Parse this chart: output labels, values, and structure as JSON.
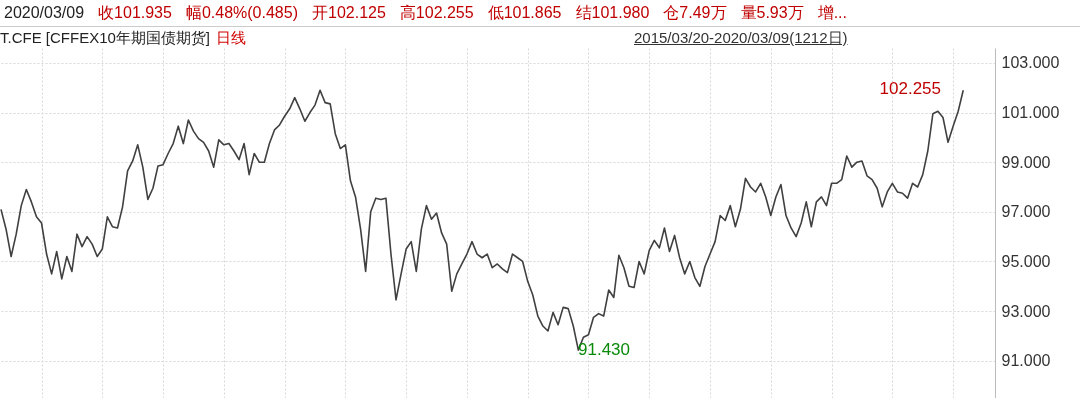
{
  "chart_data": {
    "type": "line",
    "title": "T.CFE [CFFEX10年期国债期货]",
    "subtitle": "日线",
    "annotations": [
      "2020/03/09",
      "收101.935",
      "幅0.48%(0.485)",
      "开102.125",
      "高102.255",
      "低101.865",
      "结101.980",
      "仓7.49万",
      "量5.93万",
      "增...",
      "2015/03/20-2020/03/09(1212日)",
      "102.255",
      "91.430"
    ],
    "categories": [
      null,
      null,
      null,
      null,
      null,
      null,
      null,
      null,
      null,
      null,
      null,
      null,
      null,
      null,
      null,
      null,
      null,
      null,
      null,
      null,
      null,
      null,
      null,
      null,
      null,
      null,
      null,
      null,
      null,
      null,
      null,
      null,
      null,
      null,
      null,
      null,
      null,
      null,
      null,
      null,
      null,
      null,
      null,
      null,
      null,
      null,
      null,
      null,
      null,
      null,
      null,
      null,
      null,
      null,
      null,
      null,
      null,
      null,
      null,
      null,
      null,
      null,
      null,
      null,
      null,
      null,
      null,
      null,
      null,
      null,
      null,
      null,
      null,
      null,
      null,
      null,
      null,
      null,
      null,
      null,
      null,
      null,
      null,
      null,
      null,
      null,
      null,
      null,
      null,
      null,
      null,
      null,
      null,
      null,
      null,
      null,
      null,
      null,
      null,
      null,
      null,
      null,
      null,
      null,
      null,
      null,
      null,
      null,
      null,
      null,
      null,
      null,
      null,
      null,
      null,
      null,
      null,
      null,
      null,
      null,
      null,
      null,
      null,
      null,
      null,
      null,
      null,
      null,
      null,
      null,
      null,
      null,
      null,
      null,
      null,
      null,
      null,
      null,
      null,
      null,
      null,
      null,
      null,
      null,
      null,
      null,
      null,
      null,
      null,
      null,
      null,
      null,
      null,
      null,
      null,
      null,
      null,
      null,
      null,
      null,
      null,
      null,
      null,
      null,
      null,
      null,
      null,
      null,
      null,
      null,
      null,
      null,
      null,
      null,
      null,
      null,
      null,
      null,
      null,
      null,
      null,
      null,
      null,
      null,
      null,
      null,
      null,
      null,
      null,
      null,
      null
    ],
    "series": [
      {
        "color": "#404040",
        "values": [
          97.1,
          96.3,
          95.2,
          96.1,
          97.25,
          97.9,
          97.4,
          96.8,
          96.55,
          95.3,
          94.5,
          95.4,
          94.3,
          95.2,
          94.6,
          96.1,
          95.6,
          96.0,
          95.7,
          95.2,
          95.5,
          96.8,
          96.4,
          96.35,
          97.2,
          98.65,
          99.05,
          99.7,
          98.8,
          97.5,
          97.95,
          98.85,
          98.9,
          99.35,
          99.75,
          100.45,
          99.75,
          100.7,
          100.25,
          99.95,
          99.8,
          99.45,
          98.8,
          99.9,
          99.7,
          99.75,
          99.45,
          99.1,
          99.75,
          98.5,
          99.35,
          99.0,
          99.0,
          99.75,
          100.3,
          100.5,
          100.85,
          101.15,
          101.6,
          101.15,
          100.65,
          101.0,
          101.3,
          101.9,
          101.4,
          101.35,
          100.15,
          99.55,
          99.7,
          98.25,
          97.6,
          96.3,
          94.6,
          97.0,
          97.55,
          97.5,
          97.55,
          95.3,
          93.45,
          94.5,
          95.5,
          95.8,
          94.6,
          96.3,
          97.25,
          96.7,
          96.95,
          96.15,
          95.7,
          93.8,
          94.5,
          94.9,
          95.3,
          95.8,
          95.3,
          95.15,
          95.3,
          94.75,
          94.9,
          94.7,
          94.55,
          95.3,
          95.15,
          95.0,
          94.2,
          93.65,
          92.8,
          92.4,
          92.2,
          92.95,
          92.45,
          93.15,
          93.1,
          92.4,
          91.43,
          91.95,
          92.05,
          92.75,
          92.9,
          92.8,
          93.85,
          93.55,
          95.25,
          94.75,
          94.0,
          93.95,
          95.0,
          94.5,
          95.45,
          95.85,
          95.55,
          96.35,
          95.4,
          96.05,
          95.15,
          94.5,
          95.0,
          94.35,
          94.0,
          94.8,
          95.3,
          95.8,
          96.85,
          96.65,
          97.25,
          96.4,
          97.1,
          98.35,
          98.0,
          97.8,
          98.15,
          97.6,
          96.85,
          97.6,
          98.1,
          96.85,
          96.35,
          96.0,
          96.55,
          97.4,
          96.4,
          97.4,
          97.6,
          97.25,
          98.15,
          98.15,
          98.3,
          99.25,
          98.8,
          99.0,
          99.05,
          98.45,
          98.3,
          97.95,
          97.2,
          97.8,
          98.15,
          97.8,
          97.75,
          97.55,
          98.15,
          98.0,
          98.5,
          99.45,
          100.95,
          101.05,
          100.8,
          99.8,
          100.45,
          101.05,
          101.9
        ]
      }
    ],
    "ylim": [
      89.5,
      103.6
    ],
    "yticks": [
      {
        "value": 91,
        "label": "91.000"
      },
      {
        "value": 93,
        "label": "93.000"
      },
      {
        "value": 95,
        "label": "95.000"
      },
      {
        "value": 97,
        "label": "97.000"
      },
      {
        "value": 99,
        "label": "99.000"
      },
      {
        "value": 101,
        "label": "101.000"
      },
      {
        "value": 103,
        "label": "103.000"
      }
    ],
    "tick_labels": "y",
    "grid": true,
    "legend": false,
    "marker": "none",
    "line_style": "solid"
  }
}
